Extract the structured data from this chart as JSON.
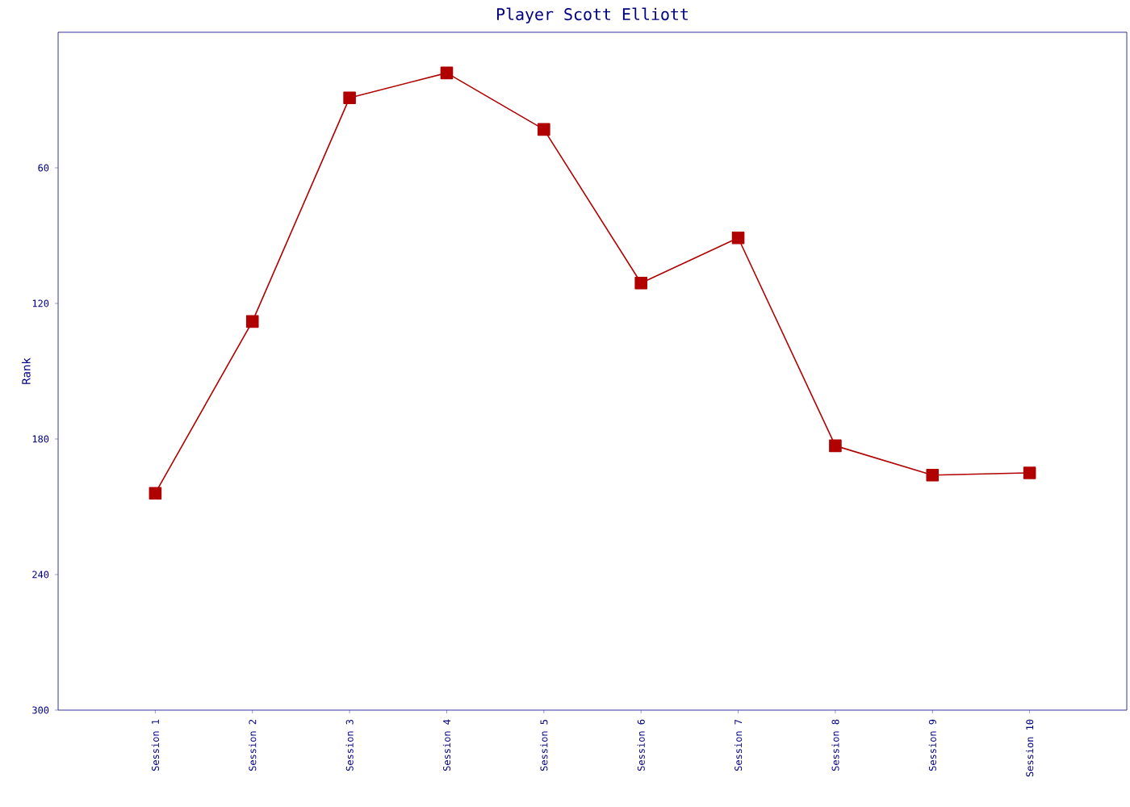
{
  "chart_data": {
    "type": "line",
    "title": "Player Scott Elliott",
    "ylabel": "Rank",
    "categories": [
      "Session 1",
      "Session 2",
      "Session 3",
      "Session 4",
      "Session 5",
      "Session 6",
      "Session 7",
      "Session 8",
      "Session 9",
      "Session 10"
    ],
    "series": [
      {
        "color": "#b00000",
        "values": [
          204,
          128,
          29,
          18,
          43,
          111,
          91,
          183,
          196,
          195
        ]
      }
    ],
    "ylim": [
      300,
      0
    ],
    "yticks": [
      60,
      120,
      180,
      240,
      300
    ],
    "marker": "square",
    "grid": false
  }
}
